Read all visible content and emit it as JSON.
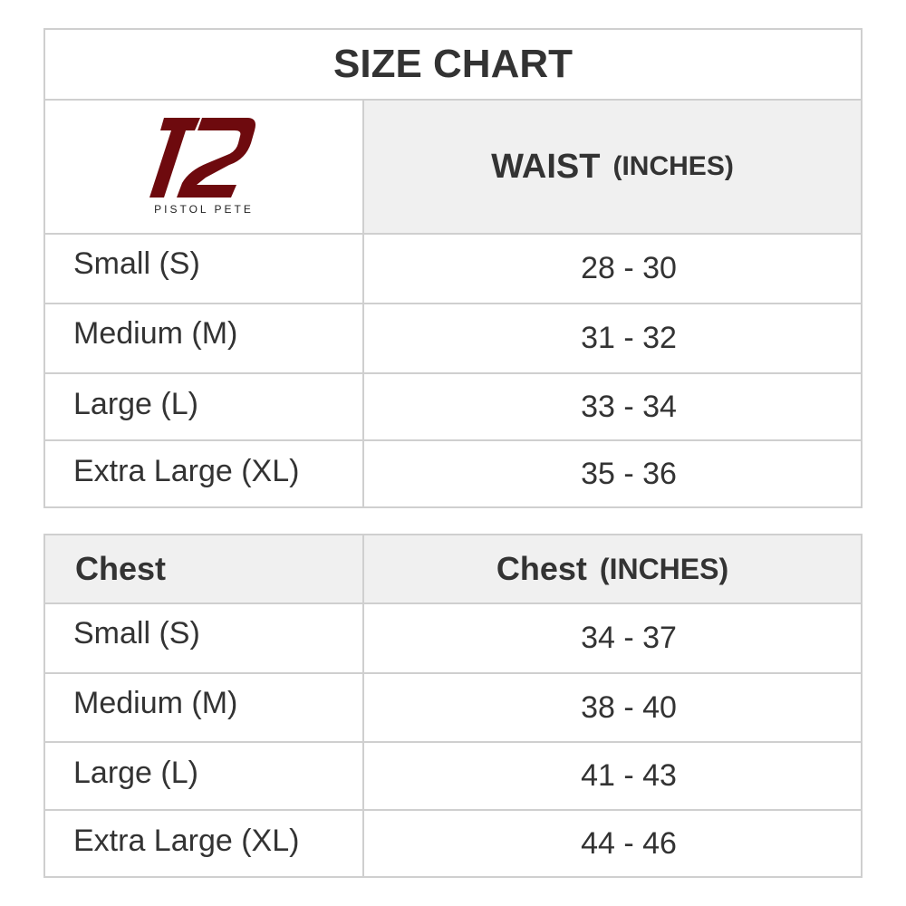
{
  "title": "SIZE CHART",
  "brand": {
    "name": "PISTOL PETE",
    "color": "#6e0a0e"
  },
  "waist_table": {
    "header": {
      "label": "WAIST",
      "unit": "(INCHES)"
    },
    "rows": [
      {
        "size": "Small (S)",
        "value": "28 - 30"
      },
      {
        "size": "Medium (M)",
        "value": "31 - 32"
      },
      {
        "size": "Large (L)",
        "value": "33 - 34"
      },
      {
        "size": "Extra Large (XL)",
        "value": "35 - 36"
      }
    ]
  },
  "chest_table": {
    "header": {
      "first_col": "Chest",
      "label": "Chest",
      "unit": "(INCHES)"
    },
    "rows": [
      {
        "size": "Small (S)",
        "value": "34 - 37"
      },
      {
        "size": "Medium (M)",
        "value": "38 - 40"
      },
      {
        "size": "Large (L)",
        "value": "41 - 43"
      },
      {
        "size": "Extra Large (XL)",
        "value": "44 - 46"
      }
    ]
  },
  "colors": {
    "border": "#cfcfcf",
    "header_bg": "#f0f0f0",
    "text": "#333333"
  }
}
